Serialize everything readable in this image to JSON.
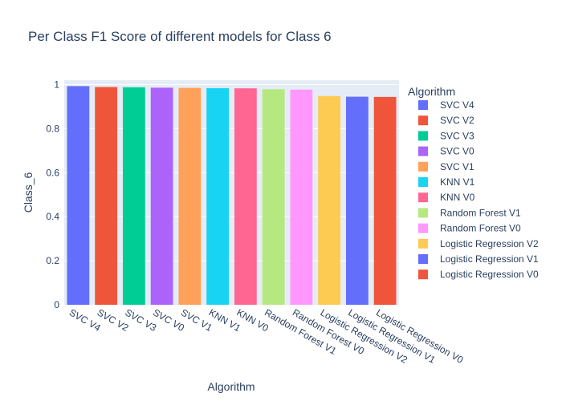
{
  "chart_data": {
    "type": "bar",
    "title": "Per Class F1 Score of different models for Class 6",
    "xlabel": "Algorithm",
    "ylabel": "Class_6",
    "ylim": [
      0,
      1.02
    ],
    "yticks": [
      0,
      0.2,
      0.4,
      0.6,
      0.8,
      1
    ],
    "grid": true,
    "legend_title": "Algorithm",
    "legend_position": "right",
    "series": [
      {
        "name": "SVC V4",
        "values": [
          0.993
        ],
        "color": "#636efa"
      },
      {
        "name": "SVC V2",
        "values": [
          0.989
        ],
        "color": "#EF553B"
      },
      {
        "name": "SVC V3",
        "values": [
          0.988
        ],
        "color": "#00cc96"
      },
      {
        "name": "SVC V0",
        "values": [
          0.986
        ],
        "color": "#ab63fa"
      },
      {
        "name": "SVC V1",
        "values": [
          0.985
        ],
        "color": "#FFA15A"
      },
      {
        "name": "KNN V1",
        "values": [
          0.984
        ],
        "color": "#19d3f3"
      },
      {
        "name": "KNN V0",
        "values": [
          0.983
        ],
        "color": "#FF6692"
      },
      {
        "name": "Random Forest V1",
        "values": [
          0.979
        ],
        "color": "#B6E880"
      },
      {
        "name": "Random Forest V0",
        "values": [
          0.977
        ],
        "color": "#FF97FF"
      },
      {
        "name": "Logistic Regression V2",
        "values": [
          0.948
        ],
        "color": "#FECB52"
      },
      {
        "name": "Logistic Regression V1",
        "values": [
          0.945
        ],
        "color": "#636efa"
      },
      {
        "name": "Logistic Regression V0",
        "values": [
          0.944
        ],
        "color": "#EF553B"
      }
    ]
  }
}
